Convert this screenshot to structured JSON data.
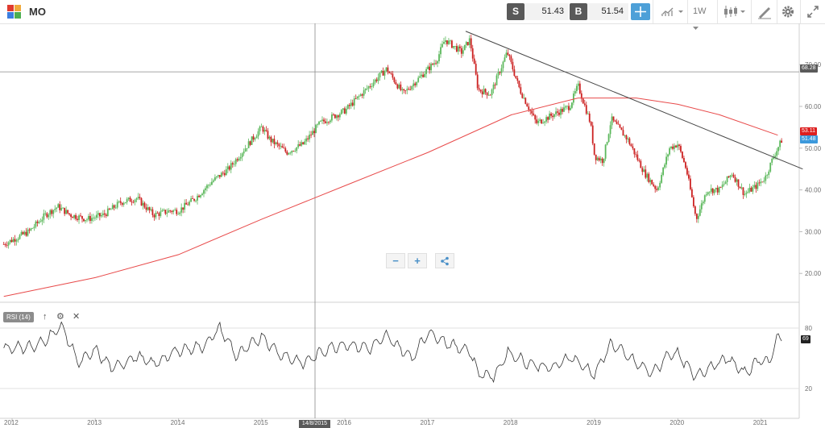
{
  "toolbar": {
    "symbol": "MO",
    "sell_label": "S",
    "sell_price": "51.43",
    "buy_label": "B",
    "buy_price": "51.54",
    "timeframe": "1W",
    "icons": [
      "crosshair-icon",
      "chart-type-icon",
      "candles-icon",
      "draw-icon",
      "gear-icon",
      "fullscreen-icon"
    ]
  },
  "colors": {
    "up": "#5cb85c",
    "down": "#cc2222",
    "ma": "#e84a4a",
    "trendline": "#444444",
    "accent": "#4da0d8"
  },
  "price_axis": {
    "ticks": [
      "70.00",
      "60.00",
      "50.00",
      "40.00",
      "30.00",
      "20.00"
    ],
    "crosshair_value": "68.28",
    "ma_value": "53.11",
    "last_value": "51.48"
  },
  "rsi": {
    "label": "RSI (14)",
    "ticks": [
      "80",
      "20"
    ],
    "current": "69"
  },
  "time_axis": {
    "ticks": [
      "2012",
      "2013",
      "2014",
      "2015",
      "2016",
      "2017",
      "2018",
      "2019",
      "2020",
      "2021"
    ],
    "crosshair_date": "14/8/2015"
  },
  "chart_data": {
    "type": "candlestick",
    "symbol": "MO",
    "interval": "1W",
    "price_range": [
      12,
      80
    ],
    "close_path": [
      [
        2011.9,
        27
      ],
      [
        2012.2,
        30
      ],
      [
        2012.4,
        34
      ],
      [
        2012.55,
        36
      ],
      [
        2012.7,
        34
      ],
      [
        2012.9,
        33
      ],
      [
        2013.1,
        34
      ],
      [
        2013.3,
        37
      ],
      [
        2013.5,
        38
      ],
      [
        2013.7,
        34
      ],
      [
        2013.9,
        35
      ],
      [
        2014.0,
        35
      ],
      [
        2014.2,
        38
      ],
      [
        2014.4,
        42
      ],
      [
        2014.6,
        45
      ],
      [
        2014.8,
        50
      ],
      [
        2015.0,
        55
      ],
      [
        2015.1,
        52
      ],
      [
        2015.3,
        49
      ],
      [
        2015.5,
        51
      ],
      [
        2015.7,
        56
      ],
      [
        2015.9,
        58
      ],
      [
        2016.0,
        59
      ],
      [
        2016.2,
        63
      ],
      [
        2016.5,
        69
      ],
      [
        2016.7,
        63
      ],
      [
        2016.9,
        67
      ],
      [
        2017.1,
        71
      ],
      [
        2017.2,
        76
      ],
      [
        2017.4,
        73
      ],
      [
        2017.5,
        76
      ],
      [
        2017.6,
        64
      ],
      [
        2017.75,
        63
      ],
      [
        2017.95,
        73
      ],
      [
        2018.1,
        64
      ],
      [
        2018.3,
        56
      ],
      [
        2018.5,
        58
      ],
      [
        2018.7,
        60
      ],
      [
        2018.8,
        65
      ],
      [
        2018.95,
        56
      ],
      [
        2019.0,
        48
      ],
      [
        2019.1,
        47
      ],
      [
        2019.2,
        57
      ],
      [
        2019.4,
        52
      ],
      [
        2019.6,
        44
      ],
      [
        2019.75,
        40
      ],
      [
        2019.9,
        50
      ],
      [
        2020.0,
        51
      ],
      [
        2020.1,
        45
      ],
      [
        2020.22,
        33
      ],
      [
        2020.35,
        40
      ],
      [
        2020.5,
        40
      ],
      [
        2020.65,
        44
      ],
      [
        2020.8,
        39
      ],
      [
        2020.95,
        41
      ],
      [
        2021.05,
        43
      ],
      [
        2021.15,
        48
      ],
      [
        2021.25,
        52
      ]
    ],
    "moving_average": [
      [
        2011.9,
        14.5
      ],
      [
        2013.0,
        19
      ],
      [
        2014.0,
        24.5
      ],
      [
        2015.0,
        33
      ],
      [
        2016.0,
        41
      ],
      [
        2017.0,
        49
      ],
      [
        2018.0,
        58
      ],
      [
        2018.8,
        62
      ],
      [
        2019.5,
        62
      ],
      [
        2020.0,
        60.5
      ],
      [
        2020.5,
        58
      ],
      [
        2021.2,
        53.1
      ]
    ],
    "trendline": [
      [
        2017.45,
        78
      ],
      [
        2021.5,
        45
      ]
    ],
    "rsi": [
      [
        2011.9,
        60
      ],
      [
        2012.3,
        62
      ],
      [
        2012.6,
        82
      ],
      [
        2012.8,
        45
      ],
      [
        2013.0,
        58
      ],
      [
        2013.2,
        40
      ],
      [
        2013.5,
        52
      ],
      [
        2013.7,
        44
      ],
      [
        2014.0,
        58
      ],
      [
        2014.3,
        62
      ],
      [
        2014.5,
        80
      ],
      [
        2014.7,
        52
      ],
      [
        2015.0,
        72
      ],
      [
        2015.2,
        55
      ],
      [
        2015.5,
        45
      ],
      [
        2015.8,
        60
      ],
      [
        2016.0,
        64
      ],
      [
        2016.3,
        60
      ],
      [
        2016.5,
        72
      ],
      [
        2016.8,
        50
      ],
      [
        2017.0,
        76
      ],
      [
        2017.3,
        62
      ],
      [
        2017.5,
        58
      ],
      [
        2017.6,
        35
      ],
      [
        2017.8,
        32
      ],
      [
        2017.95,
        56
      ],
      [
        2018.2,
        45
      ],
      [
        2018.5,
        40
      ],
      [
        2018.7,
        52
      ],
      [
        2019.0,
        34
      ],
      [
        2019.2,
        65
      ],
      [
        2019.5,
        45
      ],
      [
        2019.7,
        35
      ],
      [
        2019.9,
        55
      ],
      [
        2020.0,
        54
      ],
      [
        2020.2,
        32
      ],
      [
        2020.4,
        42
      ],
      [
        2020.6,
        50
      ],
      [
        2020.8,
        35
      ],
      [
        2021.0,
        50
      ],
      [
        2021.1,
        45
      ],
      [
        2021.2,
        72
      ],
      [
        2021.25,
        69
      ]
    ]
  },
  "zoom": {
    "minus": "−",
    "plus": "+"
  }
}
